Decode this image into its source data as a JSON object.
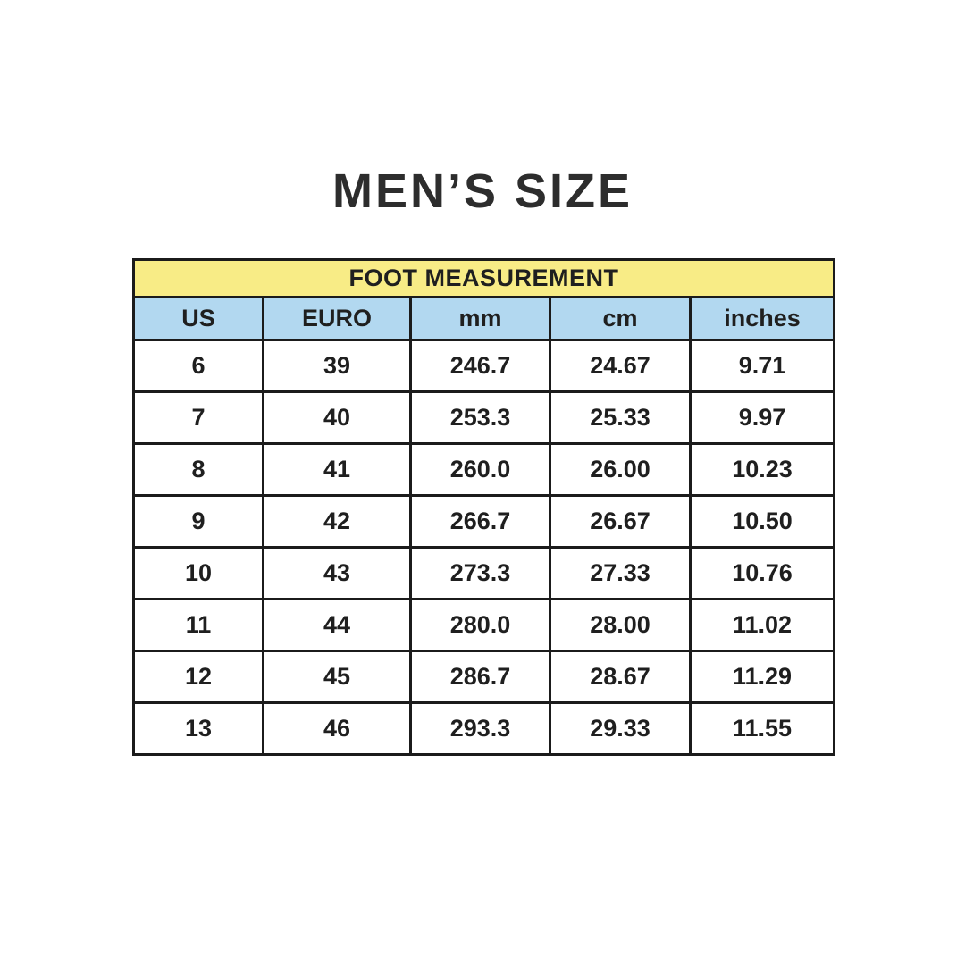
{
  "title": "MEN’S SIZE",
  "table": {
    "banner": "FOOT MEASUREMENT",
    "columns": [
      "US",
      "EURO",
      "mm",
      "cm",
      "inches"
    ],
    "rows": [
      [
        "6",
        "39",
        "246.7",
        "24.67",
        "9.71"
      ],
      [
        "7",
        "40",
        "253.3",
        "25.33",
        "9.97"
      ],
      [
        "8",
        "41",
        "260.0",
        "26.00",
        "10.23"
      ],
      [
        "9",
        "42",
        "266.7",
        "26.67",
        "10.50"
      ],
      [
        "10",
        "43",
        "273.3",
        "27.33",
        "10.76"
      ],
      [
        "11",
        "44",
        "280.0",
        "28.00",
        "11.02"
      ],
      [
        "12",
        "45",
        "286.7",
        "28.67",
        "11.29"
      ],
      [
        "13",
        "46",
        "293.3",
        "29.33",
        "11.55"
      ]
    ]
  },
  "colors": {
    "banner_bg": "#f8ec86",
    "header_bg": "#b2d8f0",
    "border": "#1b1b1b",
    "cell_text": "#1f1f1f",
    "title_text": "#2d2d2d"
  },
  "chart_data": {
    "type": "table",
    "title": "MEN’S SIZE",
    "banner": "FOOT MEASUREMENT",
    "columns": [
      "US",
      "EURO",
      "mm",
      "cm",
      "inches"
    ],
    "rows": [
      [
        6,
        39,
        246.7,
        24.67,
        9.71
      ],
      [
        7,
        40,
        253.3,
        25.33,
        9.97
      ],
      [
        8,
        41,
        260.0,
        26.0,
        10.23
      ],
      [
        9,
        42,
        266.7,
        26.67,
        10.5
      ],
      [
        10,
        43,
        273.3,
        27.33,
        10.76
      ],
      [
        11,
        44,
        280.0,
        28.0,
        11.02
      ],
      [
        12,
        45,
        286.7,
        28.67,
        11.29
      ],
      [
        13,
        46,
        293.3,
        29.33,
        11.55
      ]
    ]
  }
}
